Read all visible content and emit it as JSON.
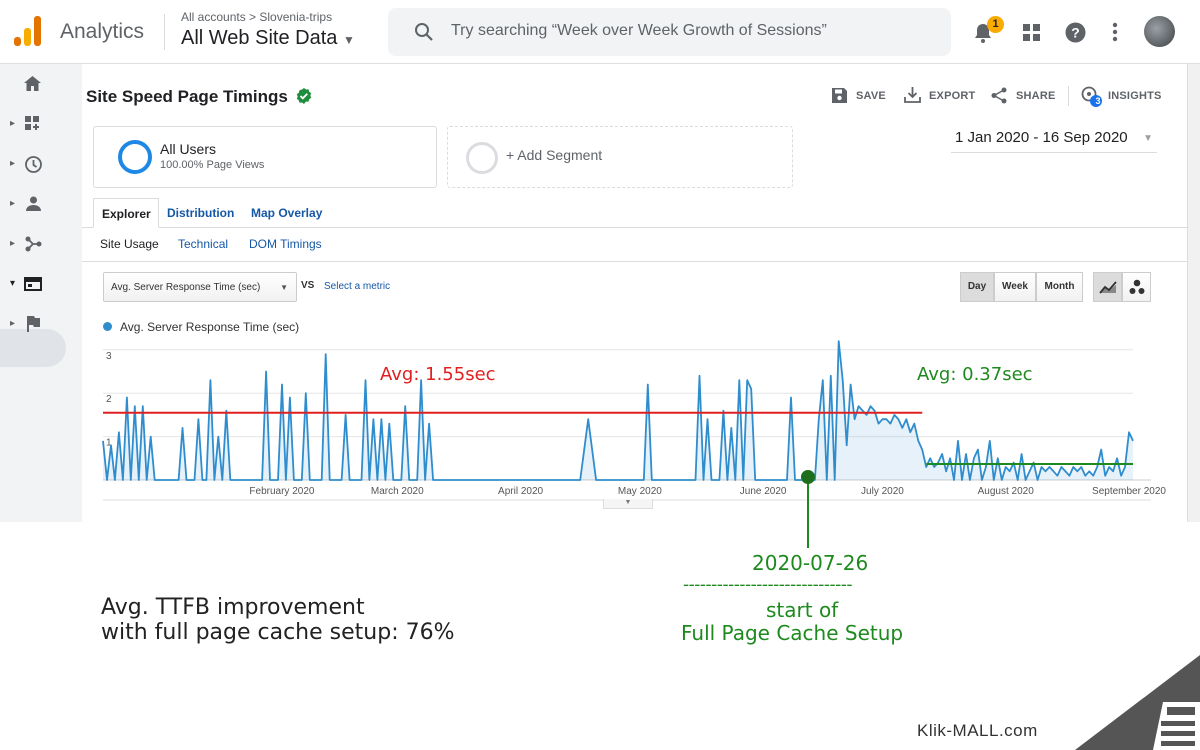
{
  "header": {
    "app_name": "Analytics",
    "breadcrumb": "All accounts > Slovenia-trips",
    "property": "All Web Site Data",
    "search_placeholder": "Try searching “Week over Week Growth of Sessions”",
    "notification_count": "1"
  },
  "report": {
    "title": "Site Speed Page Timings",
    "actions": {
      "save": "SAVE",
      "export": "EXPORT",
      "share": "SHARE",
      "insights": "INSIGHTS",
      "insights_count": "3"
    },
    "segment": {
      "name": "All Users",
      "sub": "100.00% Page Views",
      "add": "+ Add Segment"
    },
    "date_range": "1 Jan 2020 - 16 Sep 2020",
    "tabs": [
      "Explorer",
      "Distribution",
      "Map Overlay"
    ],
    "subtabs": [
      "Site Usage",
      "Technical",
      "DOM Timings"
    ],
    "metric": "Avg. Server Response Time (sec)",
    "vs": "VS",
    "select_metric": "Select a metric",
    "granularity": [
      "Day",
      "Week",
      "Month"
    ]
  },
  "chart_data": {
    "type": "line",
    "legend": "Avg. Server Response Time (sec)",
    "y_ticks": [
      "3",
      "2",
      "1"
    ],
    "ylim": [
      0,
      3
    ],
    "x_ticks": [
      "February 2020",
      "March 2020",
      "April 2020",
      "May 2020",
      "June 2020",
      "July 2020",
      "August 2020",
      "September 2020"
    ],
    "x_range": [
      "2020-01-01",
      "2020-09-16"
    ],
    "series": [
      {
        "name": "Avg. Server Response Time (sec)",
        "color": "#2f8dcd",
        "points": [
          [
            "2020-01-01",
            0.9
          ],
          [
            "2020-01-02",
            0
          ],
          [
            "2020-01-03",
            0.8
          ],
          [
            "2020-01-04",
            0
          ],
          [
            "2020-01-05",
            1.1
          ],
          [
            "2020-01-06",
            0
          ],
          [
            "2020-01-07",
            1.9
          ],
          [
            "2020-01-08",
            0
          ],
          [
            "2020-01-09",
            1.7
          ],
          [
            "2020-01-10",
            0
          ],
          [
            "2020-01-11",
            1.7
          ],
          [
            "2020-01-12",
            0
          ],
          [
            "2020-01-13",
            1
          ],
          [
            "2020-01-14",
            0
          ],
          [
            "2020-01-20",
            0
          ],
          [
            "2020-01-21",
            1.2
          ],
          [
            "2020-01-22",
            0
          ],
          [
            "2020-01-24",
            0
          ],
          [
            "2020-01-25",
            1.4
          ],
          [
            "2020-01-26",
            0
          ],
          [
            "2020-01-27",
            0
          ],
          [
            "2020-01-28",
            2.3
          ],
          [
            "2020-01-29",
            0
          ],
          [
            "2020-01-30",
            1
          ],
          [
            "2020-01-31",
            0
          ],
          [
            "2020-02-01",
            1.6
          ],
          [
            "2020-02-02",
            0
          ],
          [
            "2020-02-10",
            0
          ],
          [
            "2020-02-11",
            2.5
          ],
          [
            "2020-02-12",
            0
          ],
          [
            "2020-02-14",
            0
          ],
          [
            "2020-02-15",
            2.2
          ],
          [
            "2020-02-16",
            0
          ],
          [
            "2020-02-17",
            1.9
          ],
          [
            "2020-02-18",
            0
          ],
          [
            "2020-02-20",
            0
          ],
          [
            "2020-02-21",
            2
          ],
          [
            "2020-02-22",
            0
          ],
          [
            "2020-02-25",
            0
          ],
          [
            "2020-02-26",
            2.9
          ],
          [
            "2020-02-27",
            0
          ],
          [
            "2020-03-01",
            0
          ],
          [
            "2020-03-02",
            1.5
          ],
          [
            "2020-03-03",
            0
          ],
          [
            "2020-03-06",
            0
          ],
          [
            "2020-03-07",
            2.3
          ],
          [
            "2020-03-08",
            0
          ],
          [
            "2020-03-09",
            1.4
          ],
          [
            "2020-03-10",
            0
          ],
          [
            "2020-03-11",
            1.4
          ],
          [
            "2020-03-12",
            0
          ],
          [
            "2020-03-13",
            1.3
          ],
          [
            "2020-03-14",
            0
          ],
          [
            "2020-03-16",
            0
          ],
          [
            "2020-03-17",
            1.7
          ],
          [
            "2020-03-18",
            0
          ],
          [
            "2020-03-20",
            0
          ],
          [
            "2020-03-21",
            2.3
          ],
          [
            "2020-03-22",
            0
          ],
          [
            "2020-03-23",
            1.3
          ],
          [
            "2020-03-24",
            0
          ],
          [
            "2020-04-30",
            0
          ],
          [
            "2020-05-02",
            1.4
          ],
          [
            "2020-05-04",
            0
          ],
          [
            "2020-05-16",
            0
          ],
          [
            "2020-05-17",
            2.2
          ],
          [
            "2020-05-18",
            0
          ],
          [
            "2020-05-29",
            0
          ],
          [
            "2020-05-30",
            2.4
          ],
          [
            "2020-05-31",
            0
          ],
          [
            "2020-06-01",
            1.4
          ],
          [
            "2020-06-02",
            0
          ],
          [
            "2020-06-04",
            0
          ],
          [
            "2020-06-05",
            1.6
          ],
          [
            "2020-06-06",
            0
          ],
          [
            "2020-06-07",
            1.2
          ],
          [
            "2020-06-08",
            0
          ],
          [
            "2020-06-09",
            2.3
          ],
          [
            "2020-06-10",
            0
          ],
          [
            "2020-06-11",
            2.3
          ],
          [
            "2020-06-12",
            2.1
          ],
          [
            "2020-06-13",
            0
          ],
          [
            "2020-06-21",
            0
          ],
          [
            "2020-06-22",
            1.9
          ],
          [
            "2020-06-23",
            0
          ],
          [
            "2020-06-28",
            0
          ],
          [
            "2020-06-29",
            1.4
          ],
          [
            "2020-06-30",
            2.3
          ],
          [
            "2020-07-01",
            0
          ],
          [
            "2020-07-02",
            2.4
          ],
          [
            "2020-07-03",
            0
          ],
          [
            "2020-07-04",
            3.2
          ],
          [
            "2020-07-05",
            2.3
          ],
          [
            "2020-07-06",
            0.8
          ],
          [
            "2020-07-07",
            2.2
          ],
          [
            "2020-07-08",
            1.4
          ],
          [
            "2020-07-09",
            1.7
          ],
          [
            "2020-07-10",
            1.6
          ],
          [
            "2020-07-11",
            1.5
          ],
          [
            "2020-07-12",
            1.7
          ],
          [
            "2020-07-13",
            1.6
          ],
          [
            "2020-07-14",
            1.3
          ],
          [
            "2020-07-15",
            1.4
          ],
          [
            "2020-07-16",
            1.4
          ],
          [
            "2020-07-17",
            1.3
          ],
          [
            "2020-07-18",
            1.5
          ],
          [
            "2020-07-19",
            1.4
          ],
          [
            "2020-07-20",
            1.2
          ],
          [
            "2020-07-21",
            1.4
          ],
          [
            "2020-07-22",
            1.1
          ],
          [
            "2020-07-23",
            1.3
          ],
          [
            "2020-07-24",
            0.9
          ],
          [
            "2020-07-25",
            0.7
          ],
          [
            "2020-07-26",
            0.3
          ],
          [
            "2020-07-27",
            0.5
          ],
          [
            "2020-07-28",
            0.3
          ],
          [
            "2020-07-29",
            0.4
          ],
          [
            "2020-07-30",
            0.6
          ],
          [
            "2020-07-31",
            0.2
          ],
          [
            "2020-08-01",
            0.5
          ],
          [
            "2020-08-02",
            0
          ],
          [
            "2020-08-03",
            0.9
          ],
          [
            "2020-08-04",
            0
          ],
          [
            "2020-08-05",
            0.6
          ],
          [
            "2020-08-06",
            0
          ],
          [
            "2020-08-07",
            0.5
          ],
          [
            "2020-08-08",
            0.7
          ],
          [
            "2020-08-09",
            0
          ],
          [
            "2020-08-10",
            0.3
          ],
          [
            "2020-08-11",
            0.9
          ],
          [
            "2020-08-12",
            0
          ],
          [
            "2020-08-13",
            0.5
          ],
          [
            "2020-08-14",
            0
          ],
          [
            "2020-08-15",
            0.3
          ],
          [
            "2020-08-16",
            0.2
          ],
          [
            "2020-08-17",
            0.4
          ],
          [
            "2020-08-18",
            0
          ],
          [
            "2020-08-19",
            0.6
          ],
          [
            "2020-08-20",
            0
          ],
          [
            "2020-08-21",
            0.2
          ],
          [
            "2020-08-22",
            0.4
          ],
          [
            "2020-08-23",
            0
          ],
          [
            "2020-08-24",
            0.3
          ],
          [
            "2020-08-25",
            0.2
          ],
          [
            "2020-08-26",
            0.3
          ],
          [
            "2020-08-27",
            0.2
          ],
          [
            "2020-08-28",
            0.1
          ],
          [
            "2020-08-29",
            0.3
          ],
          [
            "2020-08-30",
            0.2
          ],
          [
            "2020-08-31",
            0.1
          ],
          [
            "2020-09-01",
            0.3
          ],
          [
            "2020-09-02",
            0.2
          ],
          [
            "2020-09-03",
            0.3
          ],
          [
            "2020-09-04",
            0.1
          ],
          [
            "2020-09-05",
            0.2
          ],
          [
            "2020-09-06",
            0.1
          ],
          [
            "2020-09-07",
            0.3
          ],
          [
            "2020-09-08",
            0.7
          ],
          [
            "2020-09-09",
            0.1
          ],
          [
            "2020-09-10",
            0.3
          ],
          [
            "2020-09-11",
            0.2
          ],
          [
            "2020-09-12",
            0.5
          ],
          [
            "2020-09-13",
            0.1
          ],
          [
            "2020-09-14",
            0.3
          ],
          [
            "2020-09-15",
            1.1
          ],
          [
            "2020-09-16",
            0.9
          ]
        ]
      }
    ],
    "annotations": {
      "before": {
        "label": "Avg: 1.55sec",
        "value": 1.55,
        "from": "2020-01-01",
        "to": "2020-07-25",
        "color": "#e02020"
      },
      "after": {
        "label": "Avg: 0.37sec",
        "value": 0.37,
        "from": "2020-07-26",
        "to": "2020-09-16",
        "color": "#1e8a1e"
      },
      "marker_date": "2020-07-26"
    }
  },
  "overlay": {
    "marker_date": "2020-07-26",
    "dashes": "------------------------------",
    "marker_line1": "start of",
    "marker_line2": "Full Page Cache Setup",
    "improvement_line1": "Avg. TTFB improvement",
    "improvement_line2": "with full page cache setup:  76%",
    "watermark": "Klik-MALL.com"
  }
}
